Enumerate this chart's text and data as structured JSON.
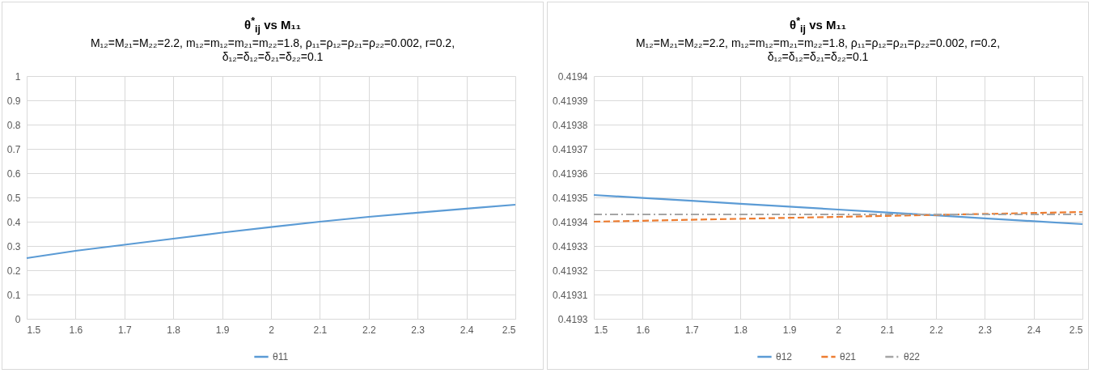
{
  "chart_data": [
    {
      "type": "line",
      "title": "θ$^{*}$$_{ij}$ vs M₁₁",
      "subtitle": "M₁₂=M₂₁=M₂₂=2.2,  m₁₂=m₁₂=m₂₁=m₂₂=1.8, ρ₁₁=ρ₁₂=ρ₂₁=ρ₂₂=0.002, r=0.2,\nδ₁₂=δ₁₂=δ₂₁=δ₂₂=0.1",
      "x": [
        1.5,
        1.6,
        1.7,
        1.8,
        1.9,
        2.0,
        2.1,
        2.2,
        2.3,
        2.4,
        2.5
      ],
      "series": [
        {
          "name": "θ11",
          "color": "#5b9bd5",
          "line_style": "solid",
          "values": [
            0.25,
            0.28,
            0.305,
            0.33,
            0.355,
            0.378,
            0.4,
            0.42,
            0.437,
            0.454,
            0.47
          ]
        }
      ],
      "xlim": [
        1.5,
        2.5
      ],
      "xticks": [
        1.5,
        1.6,
        1.7,
        1.8,
        1.9,
        2,
        2.1,
        2.2,
        2.3,
        2.4,
        2.5
      ],
      "ylim": [
        0,
        1
      ],
      "yticks": [
        0,
        0.1,
        0.2,
        0.3,
        0.4,
        0.5,
        0.6,
        0.7,
        0.8,
        0.9,
        1
      ],
      "grid": true,
      "legend": "bottom"
    },
    {
      "type": "line",
      "title": "θ$^{*}$$_{ij}$ vs M₁₁",
      "subtitle": "M₁₂=M₂₁=M₂₂=2.2,  m₁₂=m₁₂=m₂₁=m₂₂=1.8, ρ₁₁=ρ₁₂=ρ₂₁=ρ₂₂=0.002, r=0.2,\nδ₁₂=δ₁₂=δ₂₁=δ₂₂=0.1",
      "x": [
        1.5,
        1.6,
        1.7,
        1.8,
        1.9,
        2.0,
        2.1,
        2.2,
        2.3,
        2.4,
        2.5
      ],
      "series": [
        {
          "name": "θ12",
          "color": "#5b9bd5",
          "line_style": "solid",
          "values": [
            0.419351,
            0.4193498,
            0.4193486,
            0.4193474,
            0.4193462,
            0.419345,
            0.4193438,
            0.4193426,
            0.4193414,
            0.4193402,
            0.419339
          ]
        },
        {
          "name": "θ21",
          "color": "#ed7d31",
          "line_style": "dashed",
          "values": [
            0.41934,
            0.4193404,
            0.4193408,
            0.4193412,
            0.4193416,
            0.419342,
            0.4193424,
            0.4193428,
            0.4193432,
            0.4193436,
            0.419344
          ]
        },
        {
          "name": "θ22",
          "color": "#a5a5a5",
          "line_style": "dashdot",
          "values": [
            0.419343,
            0.419343,
            0.419343,
            0.419343,
            0.419343,
            0.419343,
            0.419343,
            0.419343,
            0.419343,
            0.419343,
            0.419343
          ]
        }
      ],
      "xlim": [
        1.5,
        2.5
      ],
      "xticks": [
        1.5,
        1.6,
        1.7,
        1.8,
        1.9,
        2,
        2.1,
        2.2,
        2.3,
        2.4,
        2.5
      ],
      "ylim": [
        0.4193,
        0.4194
      ],
      "yticks": [
        0.4193,
        0.41931,
        0.41932,
        0.41933,
        0.41934,
        0.41935,
        0.41936,
        0.41937,
        0.41938,
        0.41939,
        0.4194
      ],
      "grid": true,
      "legend": "bottom"
    }
  ]
}
